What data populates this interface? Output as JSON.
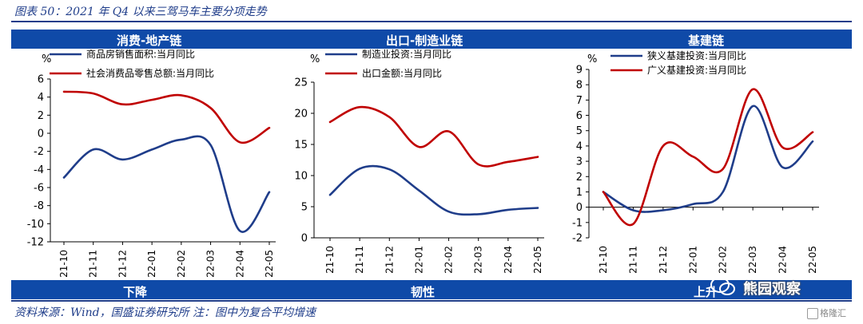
{
  "figure_title": "图表 50：2021 年 Q4 以来三驾马车主要分项走势",
  "headers": [
    "消费-地产链",
    "出口-制造业链",
    "基建链"
  ],
  "footers": [
    "下降",
    "韧性",
    "上升"
  ],
  "source": "资料来源：Wind，国盛证券研究所 注：图中为复合平均增速",
  "watermark": {
    "text": "熊园观察",
    "badge": "格隆汇"
  },
  "colors": {
    "blue": "#1f3d8a",
    "red": "#c00000",
    "banner": "#0f4aa8"
  },
  "chart_data": [
    {
      "type": "line",
      "unit": "%",
      "categories": [
        "21-10",
        "21-11",
        "21-12",
        "22-01",
        "22-02",
        "22-03",
        "22-04",
        "22-05"
      ],
      "ylim": [
        -12,
        6
      ],
      "yticks": [
        6,
        4,
        2,
        0,
        -2,
        -4,
        -6,
        -8,
        -10,
        -12
      ],
      "grid": false,
      "legend": "top",
      "series": [
        {
          "name": "商品房销售面积:当月同比",
          "color": "#1f3d8a",
          "values": [
            -4.9,
            -1.8,
            -2.9,
            -1.8,
            -0.7,
            -1.3,
            -10.8,
            -6.5
          ]
        },
        {
          "name": "社会消费品零售总额:当月同比",
          "color": "#c00000",
          "values": [
            4.6,
            4.4,
            3.2,
            3.7,
            4.2,
            2.8,
            -1.0,
            0.6
          ]
        }
      ]
    },
    {
      "type": "line",
      "unit": "%",
      "categories": [
        "21-10",
        "21-11",
        "21-12",
        "22-01",
        "22-02",
        "22-03",
        "22-04",
        "22-05"
      ],
      "ylim": [
        0,
        25
      ],
      "yticks": [
        25,
        20,
        15,
        10,
        5,
        0
      ],
      "grid": false,
      "legend": "top",
      "series": [
        {
          "name": "制造业投资:当月同比",
          "color": "#1f3d8a",
          "values": [
            6.9,
            11.1,
            11.0,
            7.6,
            4.2,
            3.8,
            4.5,
            4.8
          ]
        },
        {
          "name": "出口金额:当月同比",
          "color": "#c00000",
          "values": [
            18.6,
            21.0,
            19.4,
            14.6,
            17.1,
            11.8,
            12.2,
            13.0
          ]
        }
      ]
    },
    {
      "type": "line",
      "unit": "%",
      "categories": [
        "21-10",
        "21-11",
        "21-12",
        "22-01",
        "22-02",
        "22-03",
        "22-04",
        "22-05"
      ],
      "ylim": [
        -2,
        9
      ],
      "yticks": [
        9,
        8,
        7,
        6,
        5,
        4,
        3,
        2,
        1,
        0,
        -1,
        -2
      ],
      "grid": false,
      "legend": "top",
      "series": [
        {
          "name": "狭义基建投资:当月同比",
          "color": "#1f3d8a",
          "values": [
            1.0,
            -0.2,
            -0.2,
            0.2,
            1.0,
            6.6,
            2.6,
            4.3
          ]
        },
        {
          "name": "广义基建投资:当月同比",
          "color": "#c00000",
          "values": [
            1.0,
            -1.1,
            4.0,
            3.3,
            2.5,
            7.7,
            3.9,
            4.9
          ]
        }
      ]
    }
  ]
}
